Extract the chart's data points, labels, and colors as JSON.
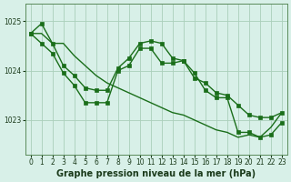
{
  "xlabel": "Graphe pression niveau de la mer (hPa)",
  "x": [
    0,
    1,
    2,
    3,
    4,
    5,
    6,
    7,
    8,
    9,
    10,
    11,
    12,
    13,
    14,
    15,
    16,
    17,
    18,
    19,
    20,
    21,
    22,
    23
  ],
  "line1": [
    1024.75,
    1024.95,
    1024.55,
    1024.1,
    1023.9,
    1023.65,
    1023.6,
    1023.6,
    1024.05,
    1024.25,
    1024.55,
    1024.6,
    1024.55,
    1024.25,
    1024.2,
    1023.85,
    1023.75,
    1023.55,
    1023.5,
    1023.3,
    1023.1,
    1023.05,
    1023.05,
    1023.15
  ],
  "line2": [
    1024.75,
    1024.55,
    1024.35,
    1023.95,
    1023.7,
    1023.35,
    1023.35,
    1023.35,
    1024.0,
    1024.1,
    1024.45,
    1024.45,
    1024.15,
    1024.15,
    1024.2,
    1023.95,
    1023.6,
    1023.45,
    1023.45,
    1022.75,
    1022.75,
    1022.65,
    1022.7,
    1022.95
  ],
  "line3": [
    1024.75,
    1024.75,
    1024.55,
    1024.55,
    1024.3,
    1024.1,
    1023.9,
    1023.75,
    1023.65,
    1023.55,
    1023.45,
    1023.35,
    1023.25,
    1023.15,
    1023.1,
    1023.0,
    1022.9,
    1022.8,
    1022.75,
    1022.65,
    1022.7,
    1022.65,
    1022.85,
    1023.15
  ],
  "line_color": "#1a6e1a",
  "marker": "s",
  "markersize": 2.5,
  "bg_color": "#d8f0e8",
  "grid_color": "#aacfba",
  "ylim_min": 1022.3,
  "ylim_max": 1025.35,
  "yticks": [
    1023,
    1024,
    1025
  ],
  "xticks": [
    0,
    1,
    2,
    3,
    4,
    5,
    6,
    7,
    8,
    9,
    10,
    11,
    12,
    13,
    14,
    15,
    16,
    17,
    18,
    19,
    20,
    21,
    22,
    23
  ],
  "tick_fontsize": 5.5,
  "label_fontsize": 7,
  "linewidth": 1.0
}
